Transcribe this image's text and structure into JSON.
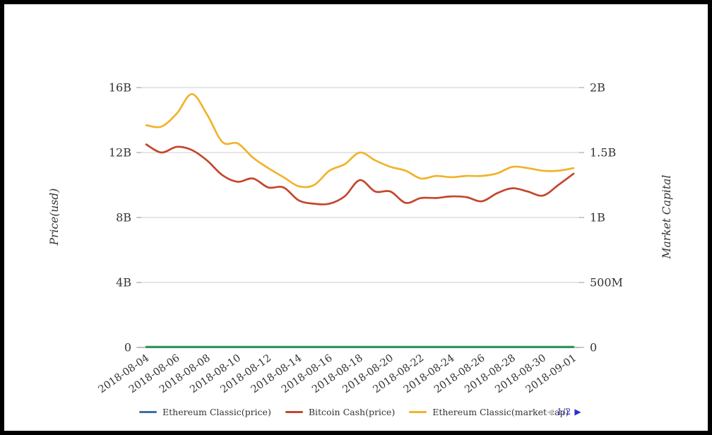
{
  "chart_data": {
    "type": "line",
    "x": [
      "2018-08-04",
      "2018-08-05",
      "2018-08-06",
      "2018-08-07",
      "2018-08-08",
      "2018-08-09",
      "2018-08-10",
      "2018-08-11",
      "2018-08-12",
      "2018-08-13",
      "2018-08-14",
      "2018-08-15",
      "2018-08-16",
      "2018-08-17",
      "2018-08-18",
      "2018-08-19",
      "2018-08-20",
      "2018-08-21",
      "2018-08-22",
      "2018-08-23",
      "2018-08-24",
      "2018-08-25",
      "2018-08-26",
      "2018-08-27",
      "2018-08-28",
      "2018-08-29",
      "2018-08-30",
      "2018-08-31",
      "2018-09-01"
    ],
    "x_tick_labels": [
      "2018-08-04",
      "2018-08-06",
      "2018-08-08",
      "2018-08-10",
      "2018-08-12",
      "2018-08-14",
      "2018-08-16",
      "2018-08-18",
      "2018-08-20",
      "2018-08-22",
      "2018-08-24",
      "2018-08-26",
      "2018-08-28",
      "2018-08-30",
      "2018-09-01"
    ],
    "series": [
      {
        "name": "Ethereum Classic(price)",
        "color": "#3D6FA5",
        "yaxis": "left",
        "in_legend": true,
        "values": [
          0,
          0,
          0,
          0,
          0,
          0,
          0,
          0,
          0,
          0,
          0,
          0,
          0,
          0,
          0,
          0,
          0,
          0,
          0,
          0,
          0,
          0,
          0,
          0,
          0,
          0,
          0,
          0,
          0
        ]
      },
      {
        "name": "Bitcoin Cash(price)",
        "color": "#C4462D",
        "yaxis": "left",
        "in_legend": true,
        "values": [
          12.5,
          12.0,
          12.35,
          12.15,
          11.5,
          10.6,
          10.2,
          10.4,
          9.85,
          9.85,
          9.05,
          8.85,
          8.85,
          9.3,
          10.3,
          9.6,
          9.6,
          8.9,
          9.2,
          9.2,
          9.3,
          9.25,
          9.0,
          9.5,
          9.8,
          9.6,
          9.35,
          10.0,
          10.7
        ]
      },
      {
        "name": "Ethereum Classic(market cap)",
        "color": "#F1B32B",
        "yaxis": "right",
        "in_legend": true,
        "values": [
          1.71,
          1.7,
          1.8,
          1.95,
          1.79,
          1.58,
          1.57,
          1.46,
          1.38,
          1.31,
          1.24,
          1.25,
          1.36,
          1.41,
          1.5,
          1.44,
          1.39,
          1.36,
          1.3,
          1.32,
          1.31,
          1.32,
          1.32,
          1.34,
          1.39,
          1.38,
          1.36,
          1.36,
          1.38
        ]
      },
      {
        "name": "",
        "color": "#2E9E50",
        "yaxis": "left",
        "in_legend": false,
        "values": [
          0,
          0,
          0,
          0,
          0,
          0,
          0,
          0,
          0,
          0,
          0,
          0,
          0,
          0,
          0,
          0,
          0,
          0,
          0,
          0,
          0,
          0,
          0,
          0,
          0,
          0,
          0,
          0,
          0
        ]
      }
    ],
    "y_axis_left": {
      "title": "Price(usd)",
      "tick_labels": [
        "0",
        "4B",
        "8B",
        "12B",
        "16B"
      ],
      "range": [
        0,
        16
      ],
      "unit": "B (usd)"
    },
    "y_axis_right": {
      "title": "Market Capital",
      "tick_labels": [
        "0",
        "500M",
        "1B",
        "1.5B",
        "2B"
      ],
      "range": [
        0,
        2
      ],
      "unit": "B (usd)"
    },
    "grid": true,
    "legend_position": "bottom"
  },
  "legend_pager": {
    "page_label": "1/2",
    "prev_icon": "◀",
    "next_icon": "▶"
  },
  "colors": {
    "grid_line": "#D6D6D6",
    "axis_line": "#9A9A9A",
    "tick_mark": "#999999",
    "text": "#333333",
    "pager_active": "#2A2FD0",
    "pager_label": "#3234CB",
    "pager_disabled": "#C9C9C9"
  }
}
